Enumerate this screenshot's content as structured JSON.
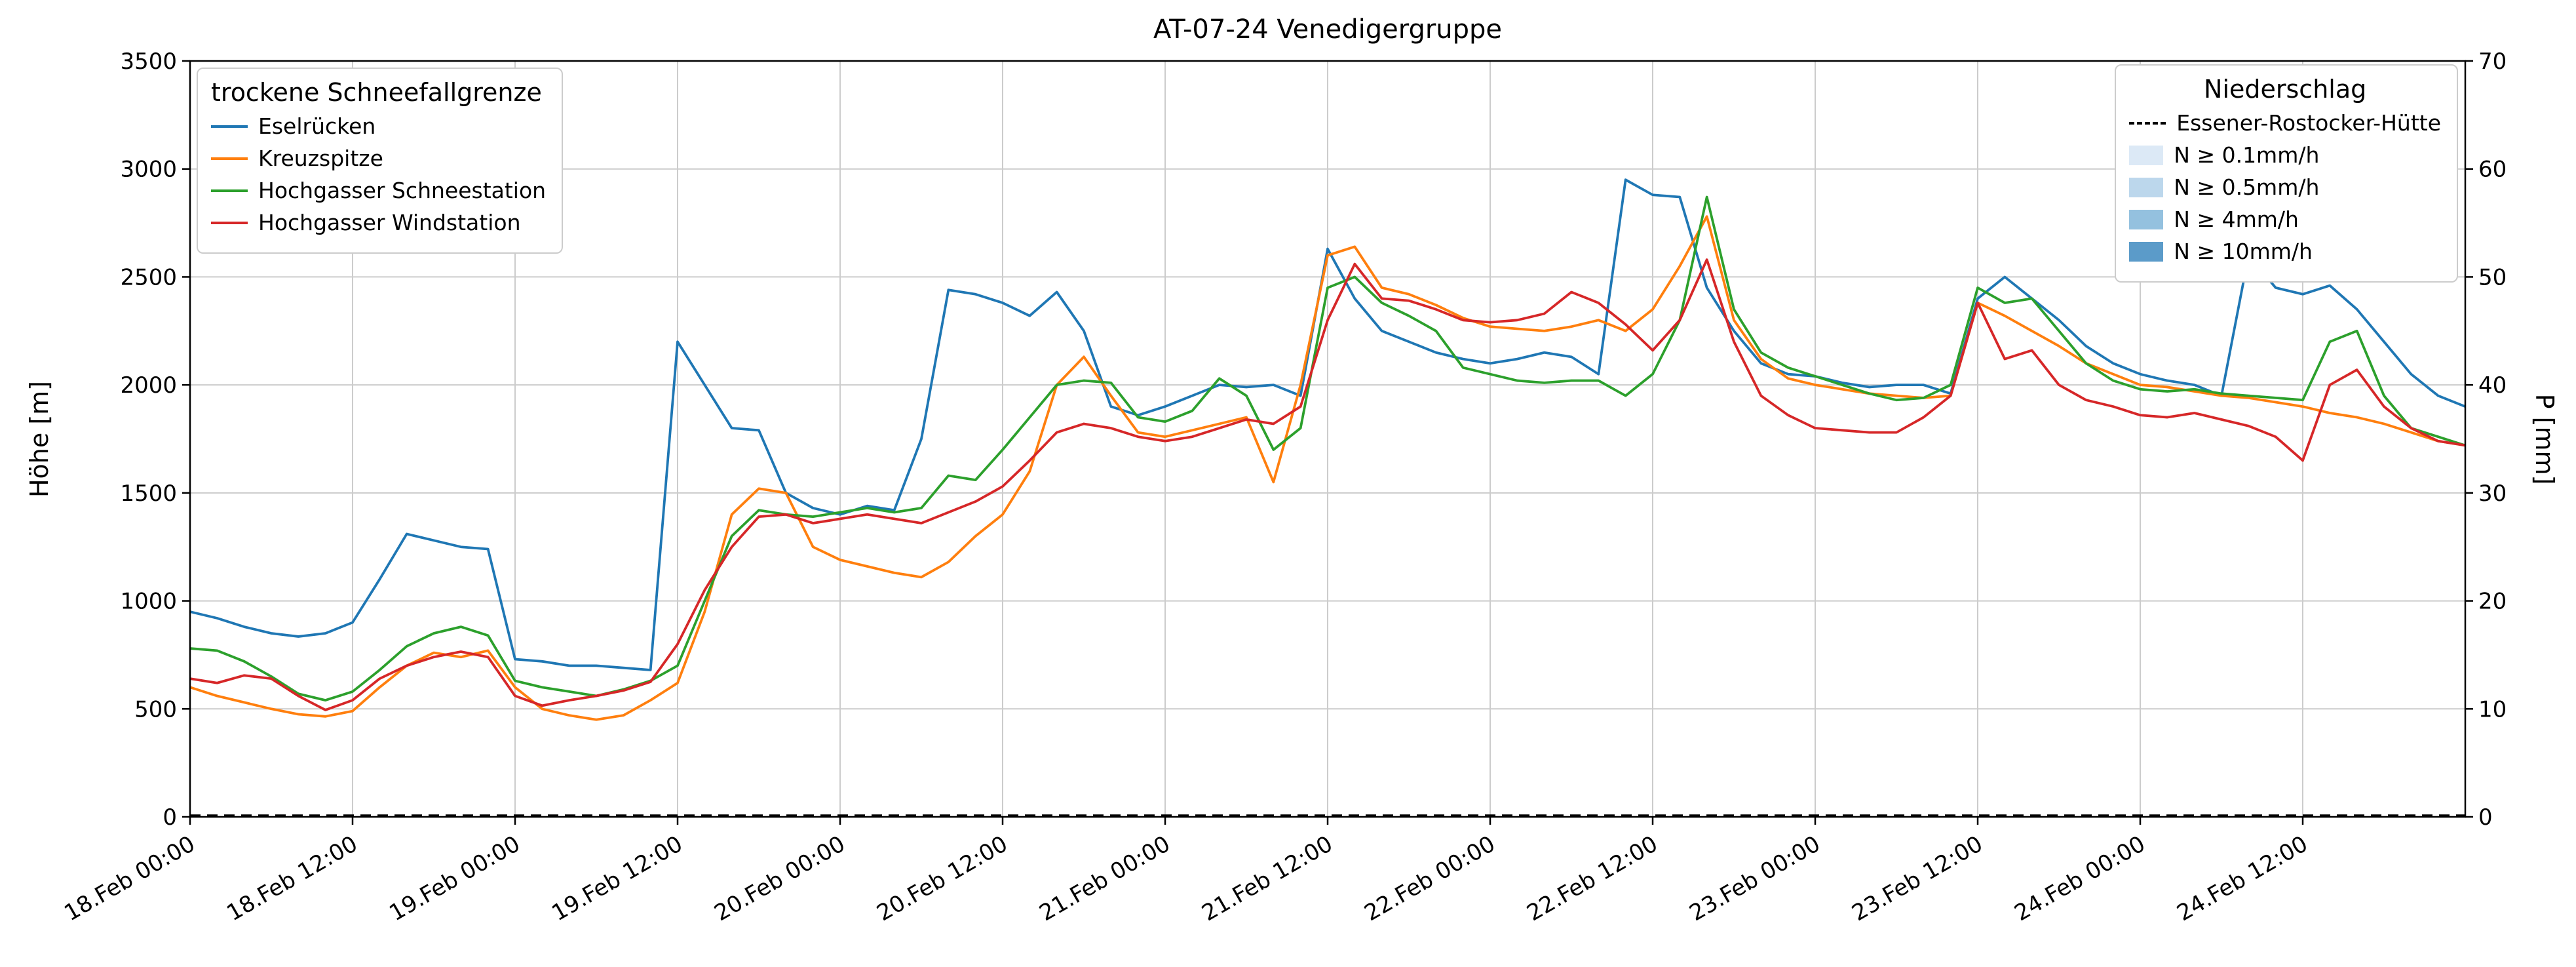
{
  "legend_snowline": {
    "title": "trockene Schneefallgrenze",
    "items": [
      {
        "id": "eselruecken",
        "label": "Eselrücken",
        "color": "#1f77b4"
      },
      {
        "id": "kreuzspitze",
        "label": "Kreuzspitze",
        "color": "#ff7f0e"
      },
      {
        "id": "hochgasser-schneestation",
        "label": "Hochgasser Schneestation",
        "color": "#2ca02c"
      },
      {
        "id": "hochgasser-windstation",
        "label": "Hochgasser Windstation",
        "color": "#d62728"
      }
    ]
  },
  "legend_precipitation": {
    "title": "Niederschlag",
    "line_item": {
      "label": "Essener-Rostocker-Hütte",
      "color": "#000000",
      "style": "dashed"
    },
    "patch_items": [
      {
        "label": "N ≥ 0.1mm/h",
        "color": "#dce9f6"
      },
      {
        "label": "N ≥ 0.5mm/h",
        "color": "#bcd7ec"
      },
      {
        "label": "N ≥ 4mm/h",
        "color": "#94c1df"
      },
      {
        "label": "N ≥ 10mm/h",
        "color": "#5b9bc9"
      }
    ]
  },
  "chart_data": {
    "type": "line",
    "title": "AT-07-24 Venedigergruppe",
    "grid": true,
    "axes": {
      "x": {
        "unit": "hours since 18.Feb 00:00",
        "range": [
          0,
          168
        ],
        "tick_hours": [
          0,
          12,
          24,
          36,
          48,
          60,
          72,
          84,
          96,
          108,
          120,
          132,
          144,
          156
        ],
        "tick_labels": [
          "18.Feb 00:00",
          "18.Feb 12:00",
          "19.Feb 00:00",
          "19.Feb 12:00",
          "20.Feb 00:00",
          "20.Feb 12:00",
          "21.Feb 00:00",
          "21.Feb 12:00",
          "22.Feb 00:00",
          "22.Feb 12:00",
          "23.Feb 00:00",
          "23.Feb 12:00",
          "24.Feb 00:00",
          "24.Feb 12:00"
        ]
      },
      "y_left": {
        "label": "Höhe [m]",
        "range": [
          0,
          3500
        ],
        "ticks": [
          0,
          500,
          1000,
          1500,
          2000,
          2500,
          3000,
          3500
        ]
      },
      "y_right": {
        "label": "P [mm]",
        "range": [
          0,
          70
        ],
        "ticks": [
          0,
          10,
          20,
          30,
          40,
          50,
          60,
          70
        ]
      }
    },
    "x_hours": [
      0,
      2,
      4,
      6,
      8,
      10,
      12,
      14,
      16,
      18,
      20,
      22,
      24,
      26,
      28,
      30,
      32,
      34,
      36,
      38,
      40,
      42,
      44,
      46,
      48,
      50,
      52,
      54,
      56,
      58,
      60,
      62,
      64,
      66,
      68,
      70,
      72,
      74,
      76,
      78,
      80,
      82,
      84,
      86,
      88,
      90,
      92,
      94,
      96,
      98,
      100,
      102,
      104,
      106,
      108,
      110,
      112,
      114,
      116,
      118,
      120,
      122,
      124,
      126,
      128,
      130,
      132,
      134,
      136,
      138,
      140,
      142,
      144,
      146,
      148,
      150,
      152,
      154,
      156,
      158,
      160,
      162,
      164,
      166,
      168
    ],
    "series": [
      {
        "id": "eselruecken",
        "name": "Eselrücken",
        "color": "#1f77b4",
        "axis": "left",
        "unit": "m",
        "values": [
          950,
          920,
          880,
          850,
          835,
          850,
          900,
          1100,
          1310,
          1280,
          1250,
          1240,
          730,
          720,
          700,
          700,
          690,
          680,
          2200,
          2000,
          1800,
          1790,
          1500,
          1430,
          1400,
          1440,
          1420,
          1750,
          2440,
          2420,
          2380,
          2320,
          2430,
          2250,
          1900,
          1860,
          1900,
          1950,
          2000,
          1990,
          2000,
          1950,
          2630,
          2400,
          2250,
          2200,
          2150,
          2120,
          2100,
          2120,
          2150,
          2130,
          2050,
          2950,
          2880,
          2870,
          2450,
          2250,
          2100,
          2050,
          2040,
          2010,
          1990,
          2000,
          2000,
          1960,
          2400,
          2500,
          2400,
          2300,
          2180,
          2100,
          2050,
          2020,
          2000,
          1950,
          2600,
          2450,
          2420,
          2460,
          2350,
          2200,
          2050,
          1950,
          1900
        ]
      },
      {
        "id": "kreuzspitze",
        "name": "Kreuzspitze",
        "color": "#ff7f0e",
        "axis": "left",
        "unit": "m",
        "values": [
          600,
          560,
          530,
          500,
          475,
          465,
          490,
          600,
          700,
          760,
          740,
          770,
          600,
          500,
          470,
          450,
          470,
          540,
          620,
          950,
          1400,
          1520,
          1500,
          1250,
          1190,
          1160,
          1130,
          1110,
          1180,
          1300,
          1400,
          1600,
          2000,
          2130,
          1950,
          1780,
          1760,
          1790,
          1820,
          1850,
          1550,
          2000,
          2600,
          2640,
          2450,
          2420,
          2370,
          2310,
          2270,
          2260,
          2250,
          2270,
          2300,
          2250,
          2350,
          2550,
          2780,
          2300,
          2120,
          2030,
          2000,
          1980,
          1960,
          1950,
          1940,
          1950,
          2380,
          2320,
          2250,
          2180,
          2100,
          2050,
          2000,
          1990,
          1970,
          1950,
          1940,
          1920,
          1900,
          1870,
          1850,
          1820,
          1780,
          1740,
          1720
        ]
      },
      {
        "id": "hochgasser-schneestation",
        "name": "Hochgasser Schneestation",
        "color": "#2ca02c",
        "axis": "left",
        "unit": "m",
        "values": [
          780,
          770,
          720,
          650,
          570,
          540,
          580,
          680,
          790,
          850,
          880,
          840,
          630,
          600,
          580,
          560,
          590,
          630,
          700,
          1000,
          1300,
          1420,
          1400,
          1390,
          1410,
          1430,
          1410,
          1430,
          1580,
          1560,
          1700,
          1850,
          2000,
          2020,
          2010,
          1850,
          1830,
          1880,
          2030,
          1950,
          1700,
          1800,
          2450,
          2500,
          2380,
          2320,
          2250,
          2080,
          2050,
          2020,
          2010,
          2020,
          2020,
          1950,
          2050,
          2300,
          2870,
          2350,
          2150,
          2080,
          2040,
          2000,
          1960,
          1930,
          1940,
          2000,
          2450,
          2380,
          2400,
          2250,
          2100,
          2020,
          1980,
          1970,
          1980,
          1960,
          1950,
          1940,
          1930,
          2200,
          2250,
          1950,
          1800,
          1760,
          1720
        ]
      },
      {
        "id": "hochgasser-windstation",
        "name": "Hochgasser Windstation",
        "color": "#d62728",
        "axis": "left",
        "unit": "m",
        "values": [
          640,
          620,
          655,
          640,
          560,
          495,
          540,
          640,
          700,
          740,
          765,
          740,
          560,
          515,
          540,
          560,
          585,
          625,
          800,
          1050,
          1250,
          1390,
          1400,
          1360,
          1380,
          1400,
          1380,
          1360,
          1410,
          1460,
          1530,
          1650,
          1780,
          1820,
          1800,
          1760,
          1740,
          1760,
          1800,
          1840,
          1820,
          1900,
          2300,
          2560,
          2400,
          2390,
          2350,
          2300,
          2290,
          2300,
          2330,
          2430,
          2380,
          2280,
          2160,
          2300,
          2580,
          2200,
          1950,
          1860,
          1800,
          1790,
          1780,
          1780,
          1850,
          1950,
          2380,
          2120,
          2160,
          2000,
          1930,
          1900,
          1860,
          1850,
          1870,
          1840,
          1810,
          1760,
          1650,
          2000,
          2070,
          1900,
          1800,
          1740,
          1720
        ]
      }
    ],
    "precipitation": {
      "id": "essener-rostocker-huette",
      "name": "Essener-Rostocker-Hütte",
      "axis": "right",
      "unit": "mm",
      "style": "dashed",
      "color": "#000000",
      "x_hours": [
        0,
        168
      ],
      "values_mm": [
        0,
        0
      ]
    }
  }
}
